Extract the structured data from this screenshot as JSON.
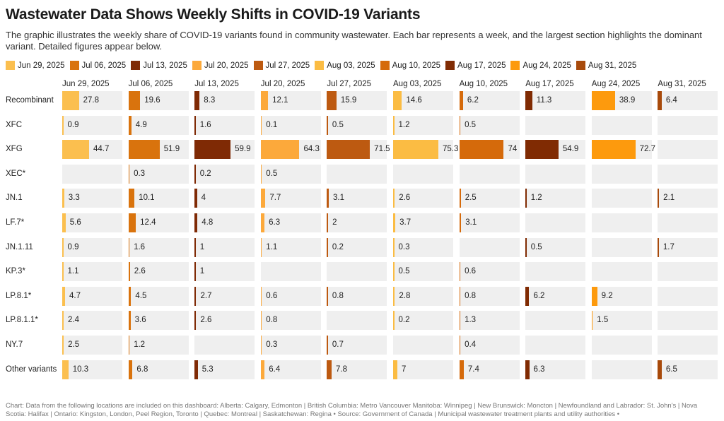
{
  "title": "Wastewater Data Shows Weekly Shifts in COVID-19 Variants",
  "subtitle": "The graphic illustrates the weekly share of COVID-19 variants found in community wastewater. Each bar represents a week, and the largest section highlights the dominant variant. Detailed figures appear below.",
  "footer": "Chart: Data from the following locations are included on this dashboard: Alberta: Calgary, Edmonton | British Columbia: Metro Vancouver Manitoba: Winnipeg | New Brunswick: Moncton | Newfoundland and Labrador: St. John's | Nova Scotia: Halifax | Ontario: Kingston, London, Peel Region, Toronto | Quebec: Montreal | Saskatchewan: Regina • Source: Government of Canada | Municipal wastewater treatment plants and utility authorities •",
  "chart_data": {
    "type": "bar",
    "orientation": "horizontal",
    "layout": "small-multiples",
    "categories": [
      "Recombinant",
      "XFC",
      "XFG",
      "XEC*",
      "JN.1",
      "LF.7*",
      "JN.1.11",
      "KP.3*",
      "LP.8.1*",
      "LP.8.1.1*",
      "NY.7",
      "Other variants"
    ],
    "legend_position": "top",
    "series": [
      {
        "name": "Jun 29, 2025",
        "color": "#fbbf4f",
        "values": [
          27.8,
          0.9,
          44.7,
          null,
          3.3,
          5.6,
          0.9,
          1.1,
          4.7,
          2.4,
          2.5,
          10.3
        ]
      },
      {
        "name": "Jul 06, 2025",
        "color": "#d9730d",
        "values": [
          19.6,
          4.9,
          51.9,
          0.3,
          10.1,
          12.4,
          1.6,
          2.6,
          4.5,
          3.6,
          1.2,
          6.8
        ]
      },
      {
        "name": "Jul 13, 2025",
        "color": "#7f2a05",
        "values": [
          8.3,
          1.6,
          59.9,
          0.2,
          4,
          4.8,
          1,
          1,
          2.7,
          2.6,
          null,
          5.3
        ]
      },
      {
        "name": "Jul 20, 2025",
        "color": "#fca93b",
        "values": [
          12.1,
          0.1,
          64.3,
          0.5,
          7.7,
          6.3,
          1.1,
          null,
          0.6,
          0.8,
          0.3,
          6.4
        ]
      },
      {
        "name": "Jul 27, 2025",
        "color": "#bd5a11",
        "values": [
          15.9,
          0.5,
          71.5,
          null,
          3.1,
          2,
          0.2,
          null,
          0.8,
          null,
          0.7,
          7.8
        ]
      },
      {
        "name": "Aug 03, 2025",
        "color": "#fbbc43",
        "values": [
          14.6,
          1.2,
          75.3,
          null,
          2.6,
          3.7,
          0.3,
          0.5,
          2.8,
          0.2,
          null,
          7
        ]
      },
      {
        "name": "Aug 10, 2025",
        "color": "#d56a0b",
        "values": [
          6.2,
          0.5,
          74,
          null,
          2.5,
          3.1,
          null,
          0.6,
          0.8,
          1.3,
          0.4,
          7.4
        ]
      },
      {
        "name": "Aug 17, 2025",
        "color": "#802b03",
        "values": [
          11.3,
          null,
          54.9,
          null,
          1.2,
          null,
          0.5,
          null,
          6.2,
          null,
          null,
          6.3
        ]
      },
      {
        "name": "Aug 24, 2025",
        "color": "#fd9a0d",
        "values": [
          38.9,
          null,
          72.7,
          null,
          null,
          null,
          null,
          null,
          9.2,
          1.5,
          null,
          null
        ]
      },
      {
        "name": "Aug 31, 2025",
        "color": "#a84a0b",
        "values": [
          6.4,
          null,
          null,
          null,
          2.1,
          null,
          1.7,
          null,
          null,
          null,
          null,
          6.5
        ]
      }
    ],
    "xlim": [
      0,
      100
    ],
    "grid": false
  }
}
